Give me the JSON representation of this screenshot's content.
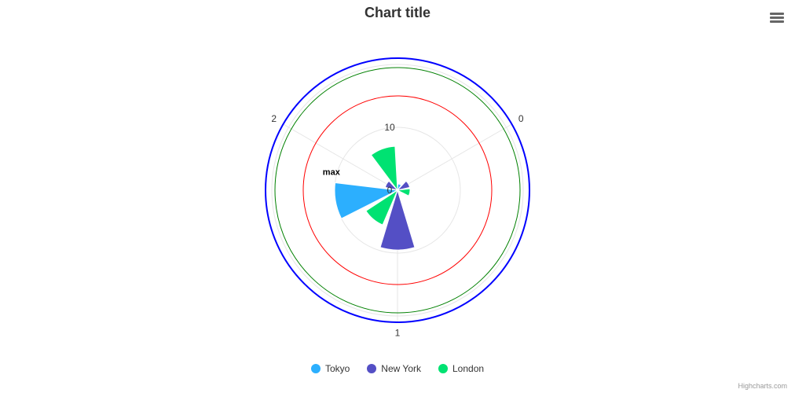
{
  "title": "Chart title",
  "credits": "Highcharts.com",
  "menu": {
    "icon": "hamburger-menu-icon"
  },
  "chart_data": {
    "type": "polar-column",
    "title": "Chart title",
    "categories": [
      "0",
      "1",
      "2"
    ],
    "yaxis": {
      "min": 0,
      "max": 20,
      "tick_labels": [
        {
          "value": 0,
          "label": "0"
        },
        {
          "value": 10,
          "label": "10"
        }
      ],
      "grid": true
    },
    "series": [
      {
        "name": "Tokyo",
        "color": "#2caffe",
        "values": [
          1,
          0,
          10
        ]
      },
      {
        "name": "New York",
        "color": "#544fc5",
        "values": [
          2,
          9.5,
          2
        ]
      },
      {
        "name": "London",
        "color": "#00e272",
        "values": [
          2,
          6,
          7
        ]
      }
    ],
    "plot_bands": [
      {
        "value": 15,
        "color": "#ff0000",
        "width": 1
      },
      {
        "value": 19.5,
        "color": "#008000",
        "width": 1
      },
      {
        "value": 21,
        "color": "#0000ff",
        "width": 2
      }
    ],
    "annotation": {
      "text": "max"
    },
    "legend_position": "bottom-center"
  }
}
